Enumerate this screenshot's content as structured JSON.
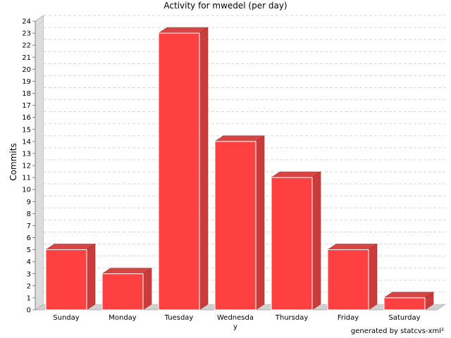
{
  "chart_data": {
    "type": "bar",
    "title": "Activity for mwedel (per day)",
    "xlabel": "",
    "ylabel": "Commits",
    "categories": [
      "Sunday",
      "Monday",
      "Tuesday",
      "Wednesday",
      "Thursday",
      "Friday",
      "Saturday"
    ],
    "values": [
      5,
      3,
      23,
      14,
      11,
      5,
      1
    ],
    "ylim": [
      0,
      24
    ],
    "yticks": [
      0,
      1,
      2,
      3,
      4,
      5,
      6,
      7,
      8,
      9,
      10,
      11,
      12,
      13,
      14,
      15,
      16,
      17,
      18,
      19,
      20,
      21,
      22,
      23,
      24
    ],
    "grid": true,
    "bar_color": "#ff4040"
  },
  "footer": "generated by statcvs-xml²"
}
